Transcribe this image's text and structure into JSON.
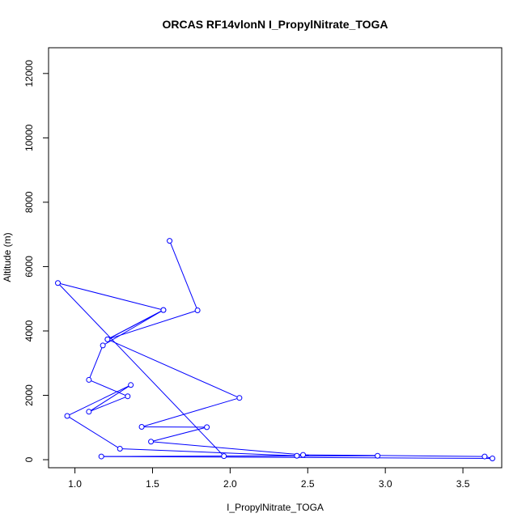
{
  "chart_data": {
    "type": "line",
    "title": "ORCAS RF14vlonN I_PropylNitrate_TOGA",
    "xlabel": "I_PropylNitrate_TOGA",
    "ylabel": "Altitude (m)",
    "xlim": [
      0.83,
      3.75
    ],
    "ylim": [
      -250,
      12800
    ],
    "xticks": [
      1.0,
      1.5,
      2.0,
      2.5,
      3.0,
      3.5
    ],
    "xtick_labels": [
      "1.0",
      "1.5",
      "2.0",
      "2.5",
      "3.0",
      "3.5"
    ],
    "yticks": [
      0,
      2000,
      4000,
      6000,
      8000,
      10000,
      12000
    ],
    "ytick_labels": [
      "0",
      "2000",
      "4000",
      "6000",
      "8000",
      "10000",
      "12000"
    ],
    "grid": false,
    "markers": "open-circle",
    "color": "#0000ff",
    "series": [
      {
        "points": [
          {
            "x": 1.61,
            "y": 6800
          },
          {
            "x": 1.79,
            "y": 4640
          },
          {
            "x": 1.21,
            "y": 3740
          },
          {
            "x": 1.57,
            "y": 4650
          },
          {
            "x": 1.18,
            "y": 3550
          },
          {
            "x": 1.09,
            "y": 2480
          },
          {
            "x": 1.34,
            "y": 1970
          },
          {
            "x": 1.09,
            "y": 1490
          },
          {
            "x": 1.36,
            "y": 2320
          },
          {
            "x": 0.95,
            "y": 1360
          },
          {
            "x": 1.29,
            "y": 340
          },
          {
            "x": 2.43,
            "y": 120
          },
          {
            "x": 1.17,
            "y": 100
          },
          {
            "x": 3.69,
            "y": 40
          },
          {
            "x": 3.64,
            "y": 100
          },
          {
            "x": 2.47,
            "y": 150
          },
          {
            "x": 1.49,
            "y": 560
          },
          {
            "x": 1.85,
            "y": 1010
          },
          {
            "x": 1.43,
            "y": 1020
          },
          {
            "x": 2.06,
            "y": 1920
          },
          {
            "x": 1.21,
            "y": 3740
          },
          {
            "x": 1.57,
            "y": 4650
          },
          {
            "x": 0.89,
            "y": 5490
          },
          {
            "x": 1.96,
            "y": 110
          },
          {
            "x": 2.95,
            "y": 120
          }
        ]
      }
    ]
  }
}
